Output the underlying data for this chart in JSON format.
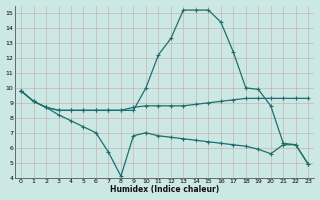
{
  "xlabel": "Humidex (Indice chaleur)",
  "bg_color": "#cce8e4",
  "line_color": "#1e6e6e",
  "xlim": [
    -0.5,
    23.5
  ],
  "ylim": [
    4,
    15.5
  ],
  "yticks": [
    4,
    5,
    6,
    7,
    8,
    9,
    10,
    11,
    12,
    13,
    14,
    15
  ],
  "xticks": [
    0,
    1,
    2,
    3,
    4,
    5,
    6,
    7,
    8,
    9,
    10,
    11,
    12,
    13,
    14,
    15,
    16,
    17,
    18,
    19,
    20,
    21,
    22,
    23
  ],
  "line_peak_x": [
    0,
    1,
    2,
    3,
    4,
    5,
    6,
    7,
    8,
    9,
    10,
    11,
    12,
    13,
    14,
    15,
    16,
    17,
    18,
    19,
    20,
    21,
    22,
    23
  ],
  "line_peak_y": [
    9.8,
    9.1,
    8.7,
    8.5,
    8.5,
    8.5,
    8.5,
    8.5,
    8.5,
    8.5,
    10.0,
    12.2,
    13.3,
    15.2,
    15.2,
    15.2,
    14.4,
    12.4,
    10.0,
    9.9,
    8.8,
    6.3,
    6.2,
    4.9
  ],
  "line_flat_x": [
    0,
    1,
    2,
    3,
    4,
    5,
    6,
    7,
    8,
    9,
    10,
    11,
    12,
    13,
    14,
    15,
    16,
    17,
    18,
    19,
    20,
    21,
    22,
    23
  ],
  "line_flat_y": [
    9.8,
    9.1,
    8.7,
    8.5,
    8.5,
    8.5,
    8.5,
    8.5,
    8.5,
    8.7,
    8.8,
    8.8,
    8.8,
    8.8,
    8.9,
    9.0,
    9.1,
    9.2,
    9.3,
    9.3,
    9.3,
    9.3,
    9.3,
    9.3
  ],
  "line_bot_x": [
    0,
    1,
    2,
    3,
    4,
    5,
    6,
    7,
    8,
    9,
    10,
    11,
    12,
    13,
    14,
    15,
    16,
    17,
    18,
    19,
    20,
    21,
    22,
    23
  ],
  "line_bot_y": [
    9.8,
    9.1,
    8.7,
    8.2,
    7.8,
    7.4,
    7.0,
    5.7,
    4.1,
    6.8,
    7.0,
    6.8,
    6.7,
    6.6,
    6.5,
    6.4,
    6.3,
    6.2,
    6.1,
    5.9,
    5.6,
    6.2,
    6.2,
    4.9
  ]
}
